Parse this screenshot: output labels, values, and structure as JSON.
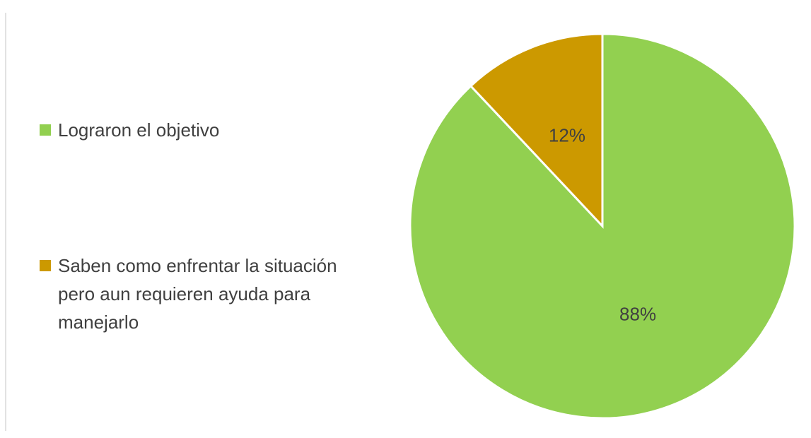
{
  "chart_data": {
    "type": "pie",
    "categories": [
      "Lograron el objetivo",
      "Saben como enfrentar la situación pero aun requieren ayuda para manejarlo"
    ],
    "values": [
      88,
      12
    ],
    "value_labels": [
      "88%",
      "12%"
    ],
    "colors": [
      "#92d050",
      "#cc9900"
    ],
    "legend": "left"
  }
}
